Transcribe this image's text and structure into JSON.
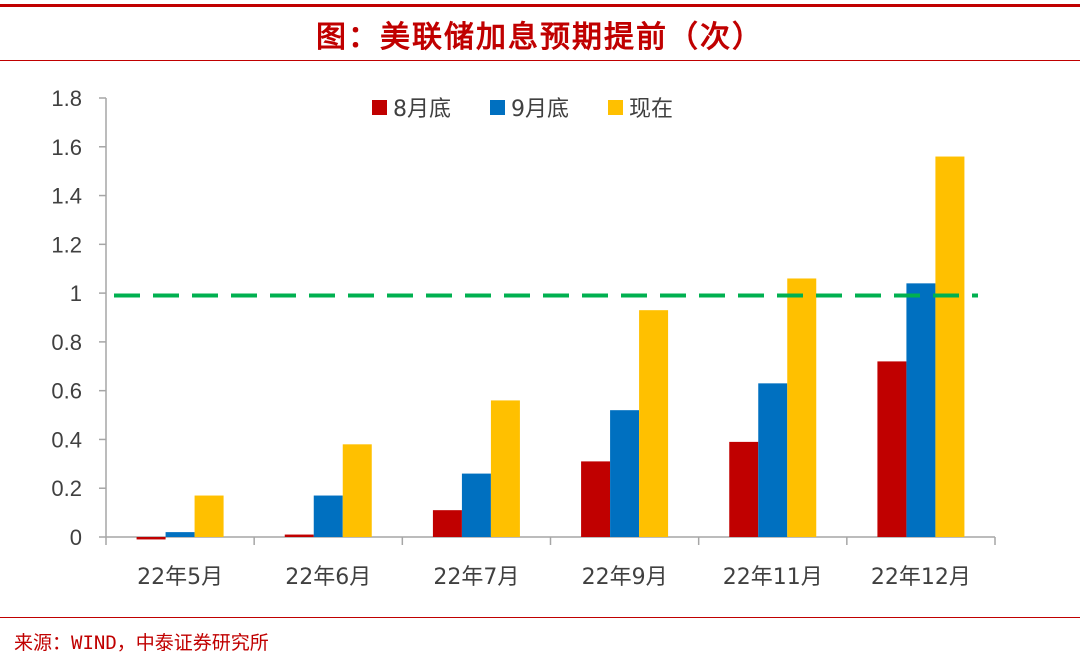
{
  "header": {
    "title": "图：美联储加息预期提前（次）"
  },
  "footer": {
    "source": "来源：WIND，中泰证券研究所"
  },
  "chart_data": {
    "type": "bar",
    "categories": [
      "22年5月",
      "22年6月",
      "22年7月",
      "22年9月",
      "22年11月",
      "22年12月"
    ],
    "series": [
      {
        "name": "8月底",
        "color": "#c00000",
        "values": [
          -0.01,
          0.01,
          0.11,
          0.31,
          0.39,
          0.72
        ]
      },
      {
        "name": "9月底",
        "color": "#0070c0",
        "values": [
          0.02,
          0.17,
          0.26,
          0.52,
          0.63,
          1.04
        ]
      },
      {
        "name": "现在",
        "color": "#ffc000",
        "values": [
          0.17,
          0.38,
          0.56,
          0.93,
          1.06,
          1.56
        ]
      }
    ],
    "yticks": [
      "0",
      "0.2",
      "0.4",
      "0.6",
      "0.8",
      "1",
      "1.2",
      "1.4",
      "1.6",
      "1.8"
    ],
    "ylim": [
      0,
      1.8
    ],
    "reference_line": {
      "value": 0.99,
      "color": "#00b050",
      "style": "dashed"
    },
    "legend_position": "top-center",
    "grid": false
  }
}
